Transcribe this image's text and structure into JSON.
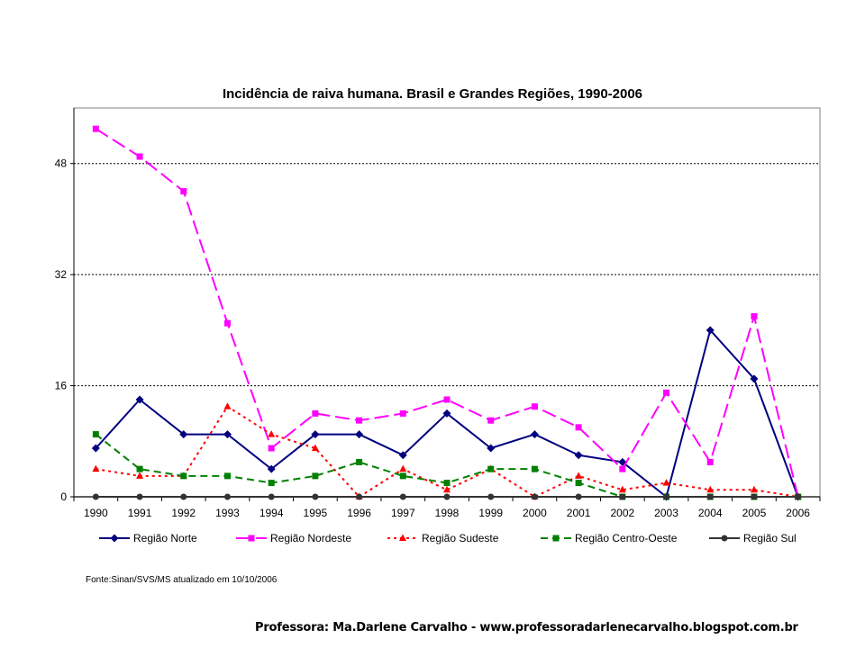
{
  "chart_data": {
    "type": "line",
    "title": "Incidência de raiva humana. Brasil e Grandes Regiões, 1990-2006",
    "xlabel": "",
    "ylabel": "",
    "categories": [
      "1990",
      "1991",
      "1992",
      "1993",
      "1994",
      "1995",
      "1996",
      "1997",
      "1998",
      "1999",
      "2000",
      "2001",
      "2002",
      "2003",
      "2004",
      "2005",
      "2006"
    ],
    "ylim": [
      0,
      56
    ],
    "yticks": [
      0,
      16,
      32,
      48
    ],
    "grid": "horizontal dotted",
    "legend": "bottom",
    "series": [
      {
        "name": "Região Norte",
        "color": "#000080",
        "marker": "diamond",
        "dash": "solid",
        "values": [
          7,
          14,
          9,
          9,
          4,
          9,
          9,
          6,
          12,
          7,
          9,
          6,
          5,
          0,
          24,
          17,
          0
        ]
      },
      {
        "name": "Região Nordeste",
        "color": "#FF00FF",
        "marker": "square",
        "dash": "long-dash",
        "values": [
          53,
          49,
          44,
          25,
          7,
          12,
          11,
          12,
          14,
          11,
          13,
          10,
          4,
          15,
          5,
          26,
          0
        ]
      },
      {
        "name": "Região Sudeste",
        "color": "#FF0000",
        "marker": "triangle",
        "dash": "dotted",
        "values": [
          4,
          3,
          3,
          13,
          9,
          7,
          0,
          4,
          1,
          4,
          0,
          3,
          1,
          2,
          1,
          1,
          0
        ]
      },
      {
        "name": "Região Centro-Oeste",
        "color": "#008000",
        "marker": "square",
        "dash": "dashed",
        "values": [
          9,
          4,
          3,
          3,
          2,
          3,
          5,
          3,
          2,
          4,
          4,
          2,
          0,
          0,
          0,
          0,
          0
        ]
      },
      {
        "name": "Região Sul",
        "color": "#333333",
        "marker": "circle",
        "dash": "solid",
        "values": [
          0,
          0,
          0,
          0,
          0,
          0,
          0,
          0,
          0,
          0,
          0,
          0,
          0,
          0,
          0,
          0,
          0
        ]
      }
    ]
  },
  "source_note": "Fonte:Sinan/SVS/MS atualizado em 10/10/2006",
  "author_credit": "Professora: Ma.Darlene Carvalho - www.professoradarlenecarvalho.blogspot.com.br"
}
